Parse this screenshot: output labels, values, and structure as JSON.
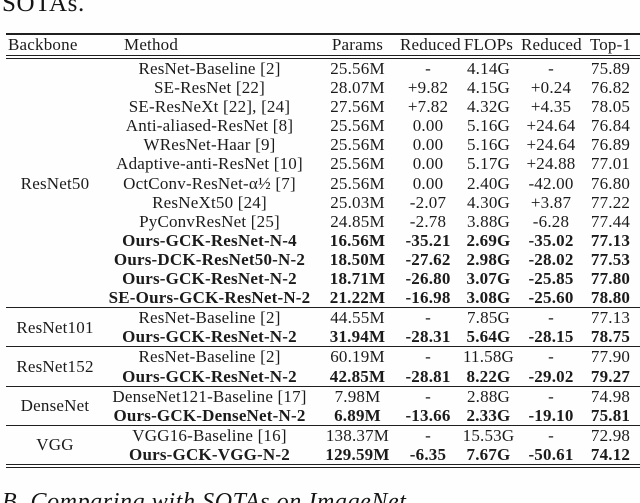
{
  "page": {
    "top_partial_text": "SOTAs.",
    "bottom_section_heading": "B. Comparing with SOTAs on ImageNet"
  },
  "table": {
    "columns": [
      "Backbone",
      "Method",
      "Params",
      "Reduced",
      "FLOPs",
      "Reduced",
      "Top-1"
    ],
    "sections": [
      {
        "backbone": "ResNet50",
        "rows": [
          {
            "method": "ResNet-Baseline [2]",
            "params": "25.56M",
            "params_reduced": "-",
            "flops": "4.14G",
            "flops_reduced": "-",
            "top1": "75.89",
            "bold": false
          },
          {
            "method": "SE-ResNet [22]",
            "params": "28.07M",
            "params_reduced": "+9.82",
            "flops": "4.15G",
            "flops_reduced": "+0.24",
            "top1": "76.82",
            "bold": false
          },
          {
            "method": "SE-ResNeXt [22], [24]",
            "params": "27.56M",
            "params_reduced": "+7.82",
            "flops": "4.32G",
            "flops_reduced": "+4.35",
            "top1": "78.05",
            "bold": false
          },
          {
            "method": "Anti-aliased-ResNet [8]",
            "params": "25.56M",
            "params_reduced": "0.00",
            "flops": "5.16G",
            "flops_reduced": "+24.64",
            "top1": "76.84",
            "bold": false
          },
          {
            "method": "WResNet-Haar [9]",
            "params": "25.56M",
            "params_reduced": "0.00",
            "flops": "5.16G",
            "flops_reduced": "+24.64",
            "top1": "76.89",
            "bold": false
          },
          {
            "method": "Adaptive-anti-ResNet [10]",
            "params": "25.56M",
            "params_reduced": "0.00",
            "flops": "5.17G",
            "flops_reduced": "+24.88",
            "top1": "77.01",
            "bold": false
          },
          {
            "method": "OctConv-ResNet-α½ [7]",
            "params": "25.56M",
            "params_reduced": "0.00",
            "flops": "2.40G",
            "flops_reduced": "-42.00",
            "top1": "76.80",
            "bold": false
          },
          {
            "method": "ResNeXt50 [24]",
            "params": "25.03M",
            "params_reduced": "-2.07",
            "flops": "4.30G",
            "flops_reduced": "+3.87",
            "top1": "77.22",
            "bold": false
          },
          {
            "method": "PyConvResNet [25]",
            "params": "24.85M",
            "params_reduced": "-2.78",
            "flops": "3.88G",
            "flops_reduced": "-6.28",
            "top1": "77.44",
            "bold": false
          },
          {
            "method": "Ours-GCK-ResNet-N-4",
            "params": "16.56M",
            "params_reduced": "-35.21",
            "flops": "2.69G",
            "flops_reduced": "-35.02",
            "top1": "77.13",
            "bold": true
          },
          {
            "method": "Ours-DCK-ResNet50-N-2",
            "params": "18.50M",
            "params_reduced": "-27.62",
            "flops": "2.98G",
            "flops_reduced": "-28.02",
            "top1": "77.53",
            "bold": true
          },
          {
            "method": "Ours-GCK-ResNet-N-2",
            "params": "18.71M",
            "params_reduced": "-26.80",
            "flops": "3.07G",
            "flops_reduced": "-25.85",
            "top1": "77.80",
            "bold": true
          },
          {
            "method": "SE-Ours-GCK-ResNet-N-2",
            "params": "21.22M",
            "params_reduced": "-16.98",
            "flops": "3.08G",
            "flops_reduced": "-25.60",
            "top1": "78.80",
            "bold": true
          }
        ]
      },
      {
        "backbone": "ResNet101",
        "rows": [
          {
            "method": "ResNet-Baseline [2]",
            "params": "44.55M",
            "params_reduced": "-",
            "flops": "7.85G",
            "flops_reduced": "-",
            "top1": "77.13",
            "bold": false
          },
          {
            "method": "Ours-GCK-ResNet-N-2",
            "params": "31.94M",
            "params_reduced": "-28.31",
            "flops": "5.64G",
            "flops_reduced": "-28.15",
            "top1": "78.75",
            "bold": true
          }
        ]
      },
      {
        "backbone": "ResNet152",
        "rows": [
          {
            "method": "ResNet-Baseline [2]",
            "params": "60.19M",
            "params_reduced": "-",
            "flops": "11.58G",
            "flops_reduced": "-",
            "top1": "77.90",
            "bold": false
          },
          {
            "method": "Ours-GCK-ResNet-N-2",
            "params": "42.85M",
            "params_reduced": "-28.81",
            "flops": "8.22G",
            "flops_reduced": "-29.02",
            "top1": "79.27",
            "bold": true
          }
        ]
      },
      {
        "backbone": "DenseNet",
        "rows": [
          {
            "method": "DenseNet121-Baseline [17]",
            "params": "7.98M",
            "params_reduced": "-",
            "flops": "2.88G",
            "flops_reduced": "-",
            "top1": "74.98",
            "bold": false
          },
          {
            "method": "Ours-GCK-DenseNet-N-2",
            "params": "6.89M",
            "params_reduced": "-13.66",
            "flops": "2.33G",
            "flops_reduced": "-19.10",
            "top1": "75.81",
            "bold": true
          }
        ]
      },
      {
        "backbone": "VGG",
        "rows": [
          {
            "method": "VGG16-Baseline [16]",
            "params": "138.37M",
            "params_reduced": "-",
            "flops": "15.53G",
            "flops_reduced": "-",
            "top1": "72.98",
            "bold": false
          },
          {
            "method": "Ours-GCK-VGG-N-2",
            "params": "129.59M",
            "params_reduced": "-6.35",
            "flops": "7.67G",
            "flops_reduced": "-50.61",
            "top1": "74.12",
            "bold": true
          }
        ]
      }
    ]
  }
}
